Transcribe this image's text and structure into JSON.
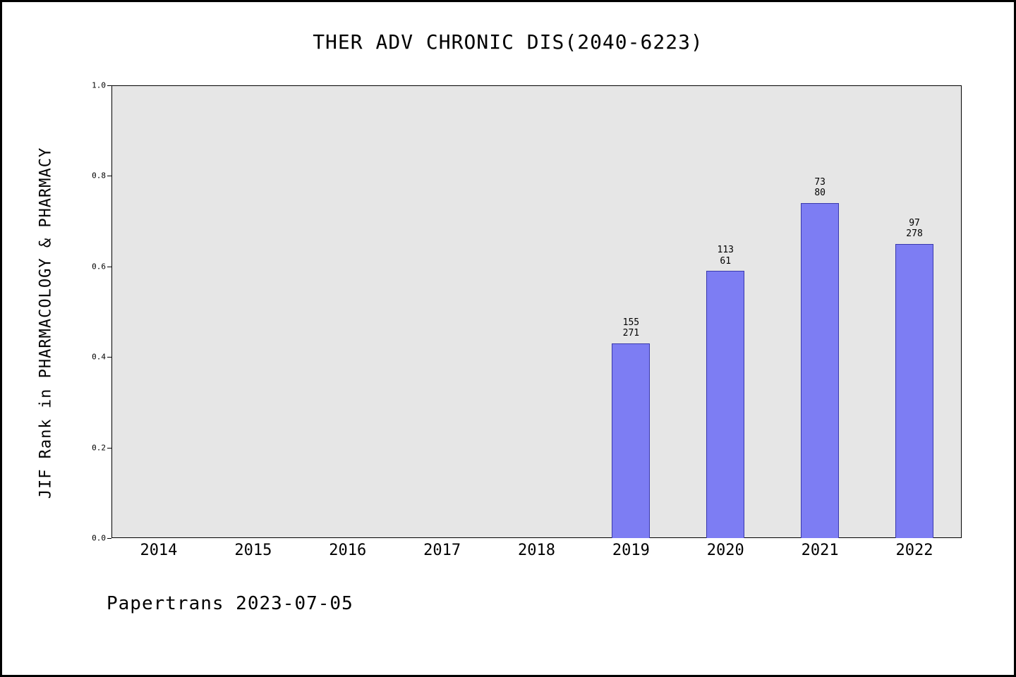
{
  "page": {
    "background_color": "#ffffff",
    "border_color": "#000000"
  },
  "chart_data": {
    "type": "bar",
    "title": "THER ADV CHRONIC DIS(2040-6223)",
    "xlabel": "",
    "ylabel": "JIF Rank in PHARMACOLOGY & PHARMACY",
    "categories": [
      "2014",
      "2015",
      "2016",
      "2017",
      "2018",
      "2019",
      "2020",
      "2021",
      "2022"
    ],
    "values": [
      null,
      null,
      null,
      null,
      null,
      0.43,
      0.59,
      0.74,
      0.65
    ],
    "bar_labels": [
      null,
      null,
      null,
      null,
      null,
      "155\n271",
      "113\n61",
      "73\n80",
      "97\n278"
    ],
    "ylim": [
      0,
      1
    ],
    "yticks": [
      0.0,
      0.2,
      0.4,
      0.6,
      0.8,
      1.0
    ],
    "ytick_labels": [
      "0.0",
      "0.2",
      "0.4",
      "0.6",
      "0.8",
      "1.0"
    ],
    "grid": false,
    "legend_position": "none",
    "plot_background": "#e6e6e6",
    "bar_color": "#7d7df3",
    "bar_edge_color": "#3939ad"
  },
  "footer": {
    "text": "Papertrans 2023-07-05"
  }
}
